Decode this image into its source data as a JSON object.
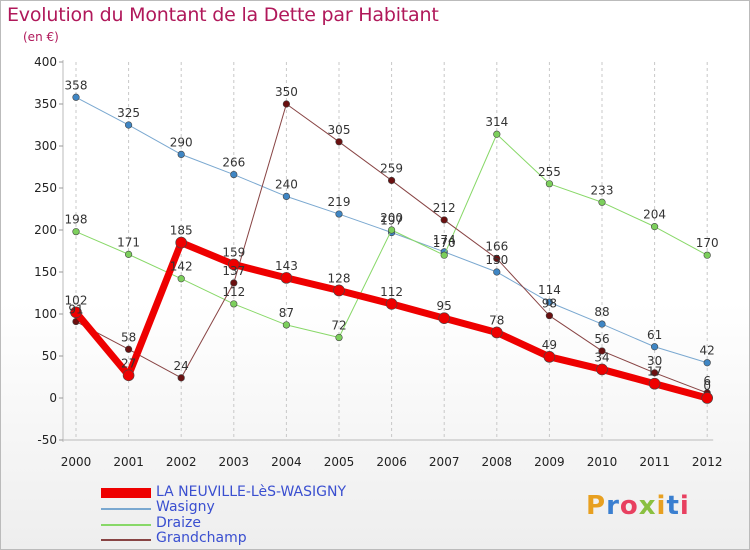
{
  "header": {
    "title": "Evolution du Montant de la Dette par Habitant",
    "unit": "(en €)"
  },
  "logo": {
    "text": "Proxiti",
    "colors": [
      "#e8a020",
      "#3a7fd0",
      "#e84060",
      "#8ac040",
      "#e8a020",
      "#3a7fd0",
      "#e84060"
    ]
  },
  "chart_data": {
    "type": "line",
    "title": "Evolution du Montant de la Dette par Habitant",
    "ylabel": "(en €)",
    "xlabel": "",
    "x": [
      "2000",
      "2001",
      "2002",
      "2003",
      "2004",
      "2005",
      "2006",
      "2007",
      "2008",
      "2009",
      "2010",
      "2011",
      "2012"
    ],
    "ylim": [
      -50,
      400
    ],
    "yticks": [
      -50,
      0,
      50,
      100,
      150,
      200,
      250,
      300,
      350,
      400
    ],
    "grid": "vertical dashed",
    "legend": "bottom-left",
    "series": [
      {
        "name": "LA NEUVILLE-LèS-WASIGNY",
        "color": "#ee0000",
        "point_color": "#ee0000",
        "width": 7,
        "values": [
          102,
          27,
          185,
          159,
          143,
          128,
          112,
          95,
          78,
          49,
          34,
          17,
          0
        ]
      },
      {
        "name": "Wasigny",
        "color": "#7aa8d0",
        "point_color": "#3f86c4",
        "width": 1,
        "values": [
          358,
          325,
          290,
          266,
          240,
          219,
          197,
          174,
          150,
          114,
          88,
          61,
          42
        ]
      },
      {
        "name": "Draize",
        "color": "#88d868",
        "point_color": "#7ccf5c",
        "width": 1,
        "values": [
          198,
          171,
          142,
          112,
          87,
          72,
          200,
          170,
          314,
          255,
          233,
          204,
          170
        ]
      },
      {
        "name": "Grandchamp",
        "color": "#884444",
        "point_color": "#6a1010",
        "width": 1,
        "values": [
          91,
          58,
          24,
          137,
          350,
          305,
          259,
          212,
          166,
          98,
          56,
          30,
          6
        ]
      }
    ]
  }
}
